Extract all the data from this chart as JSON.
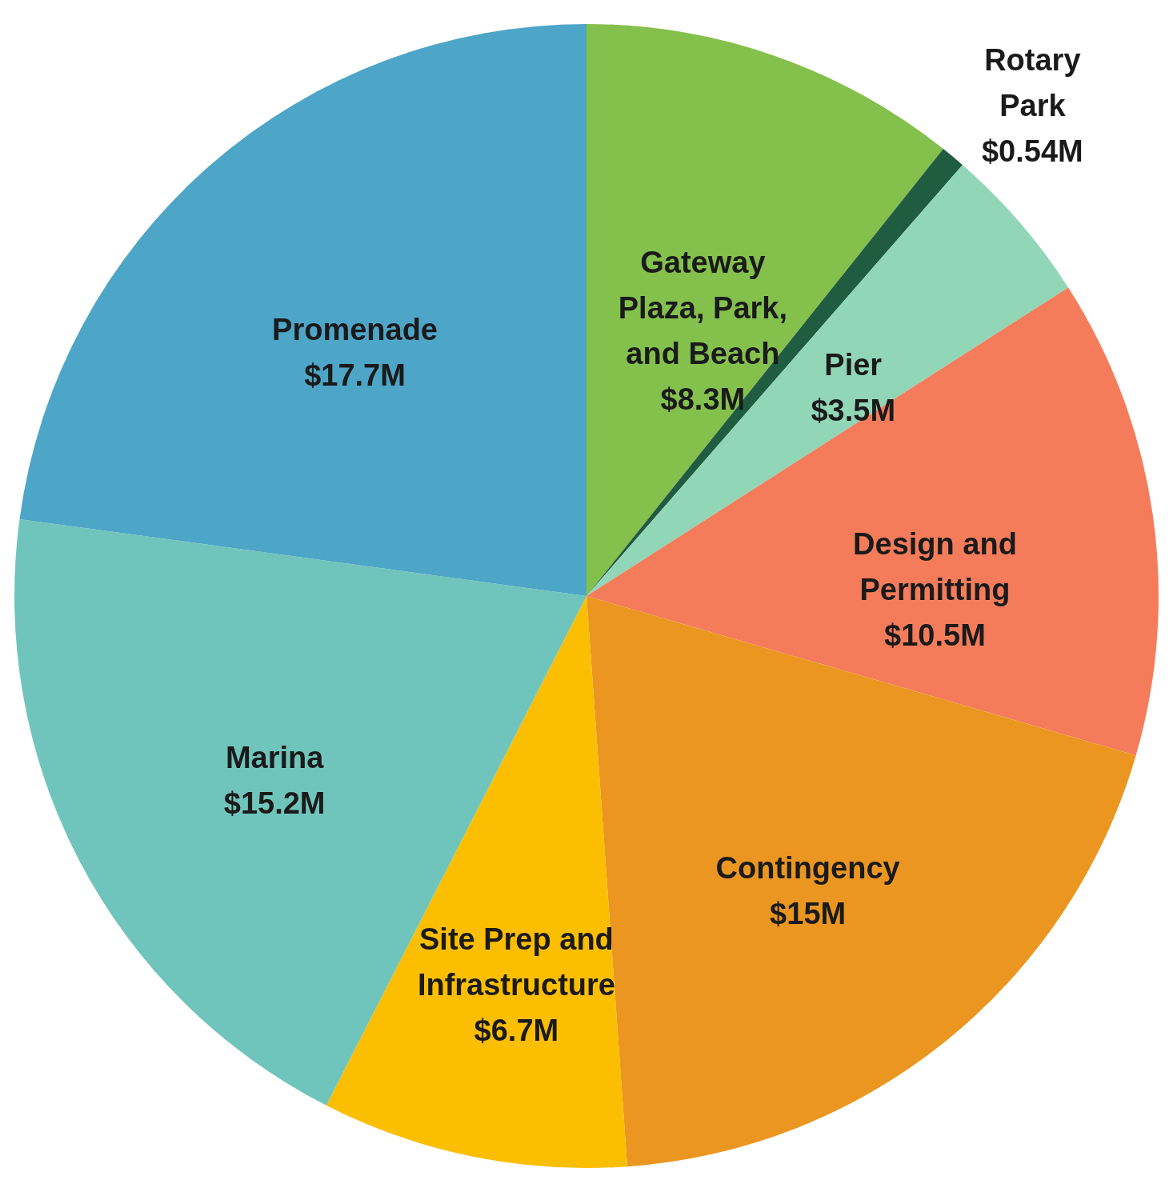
{
  "chart_data": {
    "type": "pie",
    "categories": [
      "Gateway Plaza, Park, and Beach",
      "Rotary Park",
      "Pier",
      "Design and Permitting",
      "Contingency",
      "Site Prep and Infrastructure",
      "Marina",
      "Promenade"
    ],
    "values": [
      8.3,
      0.54,
      3.5,
      10.5,
      15,
      6.7,
      15.2,
      17.7
    ],
    "value_labels": [
      "$8.3M",
      "$0.54M",
      "$3.5M",
      "$10.5M",
      "$15M",
      "$6.7M",
      "$15.2M",
      "$17.7M"
    ],
    "colors": [
      "#84c04c",
      "#1f5c40",
      "#92d6b8",
      "#f47c5a",
      "#ea9620",
      "#fbbe00",
      "#6fc5bb",
      "#4da5c7"
    ]
  }
}
